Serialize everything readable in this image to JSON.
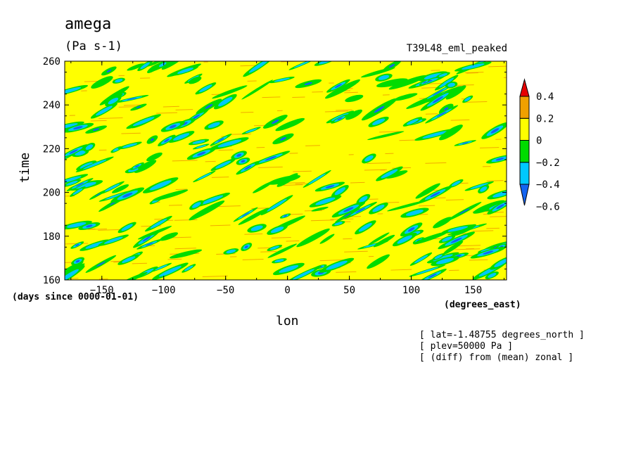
{
  "chart_data": {
    "type": "heatmap",
    "title": "amega",
    "units": "(Pa s-1)",
    "run_name": "T39L48_eml_peaked",
    "xlabel": "lon",
    "x_units": "(degrees_east)",
    "ylabel": "time",
    "y_units": "(days since 0000-01-01)",
    "xlim": [
      -180,
      177
    ],
    "ylim": [
      160,
      260
    ],
    "x_ticks": [
      -150,
      -100,
      -50,
      0,
      50,
      100,
      150
    ],
    "y_ticks": [
      160,
      180,
      200,
      220,
      240,
      260
    ],
    "colorbar": {
      "levels": [
        -0.6,
        -0.4,
        -0.2,
        0,
        0.2,
        0.4
      ],
      "labels": [
        "0.4",
        "0.2",
        "0",
        "-0.2",
        "-0.4",
        "-0.6"
      ],
      "colors": [
        "#1464f0",
        "#00c8ff",
        "#00dc00",
        "#ffff00",
        "#f0a000",
        "#e60000"
      ]
    },
    "annotations": [
      "[ lat=-1.48755 degrees_north ]",
      "[ plev=50000 Pa ]",
      "[ (diff) from (mean) zonal ]"
    ]
  }
}
